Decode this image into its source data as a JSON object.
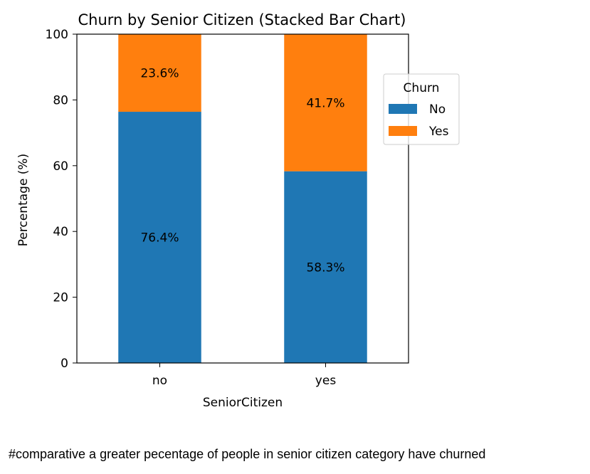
{
  "chart_data": {
    "type": "bar",
    "stacked": true,
    "title": "Churn by Senior Citizen (Stacked Bar Chart)",
    "xlabel": "SeniorCitizen",
    "ylabel": "Percentage (%)",
    "categories": [
      "no",
      "yes"
    ],
    "ylim": [
      0,
      100
    ],
    "yticks": [
      0,
      20,
      40,
      60,
      80,
      100
    ],
    "series": [
      {
        "name": "No",
        "values": [
          76.4,
          58.3
        ],
        "labels": [
          "76.4%",
          "58.3%"
        ],
        "color": "#1f77b4"
      },
      {
        "name": "Yes",
        "values": [
          23.6,
          41.7
        ],
        "labels": [
          "23.6%",
          "41.7%"
        ],
        "color": "#ff7f0e"
      }
    ],
    "legend": {
      "title": "Churn",
      "placement": "outside-right"
    },
    "grid": false
  },
  "caption": "#comparative a greater pecentage of people in senior citizen category have churned"
}
